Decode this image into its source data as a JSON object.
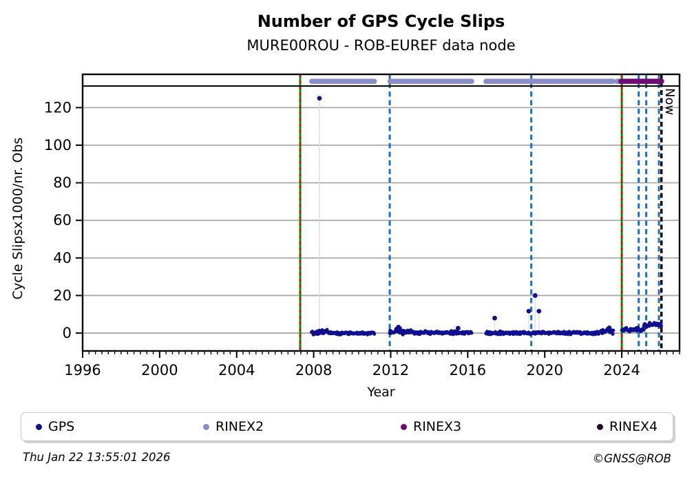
{
  "header": {
    "title": "Number of GPS Cycle Slips",
    "subtitle": "MURE00ROU - ROB-EUREF data node"
  },
  "chart_data": {
    "type": "scatter",
    "title": "Number of GPS Cycle Slips",
    "subtitle": "MURE00ROU - ROB-EUREF data node",
    "xlabel": "Year",
    "ylabel": "Cycle Slipsx1000/nr. Obs",
    "xlim": [
      1996,
      2027
    ],
    "xticks": [
      1996,
      2000,
      2004,
      2008,
      2012,
      2016,
      2020,
      2024
    ],
    "x_minor_step": 0.3333333,
    "ylim": [
      -9.5,
      131.5
    ],
    "yticks": [
      0,
      20,
      40,
      60,
      80,
      100,
      120
    ],
    "grid": "horizontal",
    "grid_color": "#a9a9a9",
    "top_band_value": 134,
    "series": [
      {
        "name": "GPS",
        "color": "#10108f",
        "marker": "dot",
        "bands": [
          [
            2007.9,
            2008.2,
            0.1,
            0.9
          ],
          [
            2008.2,
            2008.75,
            0.7,
            1.3
          ],
          [
            2008.75,
            2011.15,
            0.0,
            0.9
          ],
          [
            2011.95,
            2012.25,
            0.4,
            1.1
          ],
          [
            2012.25,
            2012.6,
            1.3,
            1.7
          ],
          [
            2012.6,
            2013.4,
            0.5,
            1.3
          ],
          [
            2013.4,
            2016.2,
            0.2,
            1.0
          ],
          [
            2016.95,
            2022.9,
            0.15,
            0.95
          ],
          [
            2022.9,
            2023.57,
            1.0,
            1.5
          ],
          [
            2024.0,
            2024.9,
            2.0,
            1.3
          ],
          [
            2024.9,
            2025.15,
            1.8,
            1.1
          ],
          [
            2025.15,
            2025.6,
            4.3,
            1.4
          ],
          [
            2025.6,
            2026.05,
            4.6,
            1.2
          ]
        ],
        "outliers": [
          [
            2008.3,
            125
          ],
          [
            2012.4,
            3.2
          ],
          [
            2015.5,
            2.6
          ],
          [
            2017.4,
            8
          ],
          [
            2019.17,
            11.7
          ],
          [
            2019.5,
            20
          ],
          [
            2019.7,
            11.7
          ],
          [
            2023.35,
            2.8
          ]
        ],
        "stem_threshold": 7,
        "stem_color": "#dcdcee"
      },
      {
        "name": "RINEX2",
        "color": "#8c8cc8",
        "marker": "band",
        "segments": [
          [
            2007.9,
            2010.1
          ],
          [
            2010.2,
            2011.15
          ],
          [
            2011.97,
            2016.2
          ],
          [
            2016.95,
            2023.55
          ],
          [
            2023.75,
            2023.85
          ]
        ]
      },
      {
        "name": "RINEX3",
        "color": "#6f0c6f",
        "marker": "band",
        "segments": [
          [
            2023.95,
            2026.07
          ]
        ]
      },
      {
        "name": "RINEX4",
        "color": "#26082a",
        "marker": "band",
        "segments": []
      }
    ],
    "vlines": [
      {
        "x": 2007.3,
        "style": "green-red"
      },
      {
        "x": 2011.95,
        "style": "blue-dashed"
      },
      {
        "x": 2019.3,
        "style": "blue-dashed"
      },
      {
        "x": 2024.0,
        "style": "green-red"
      },
      {
        "x": 2024.88,
        "style": "blue-dashed"
      },
      {
        "x": 2025.27,
        "style": "blue-dashed"
      },
      {
        "x": 2025.93,
        "style": "blue-dashed"
      },
      {
        "x": 2026.06,
        "style": "now-black-dashed",
        "label": "Now"
      }
    ],
    "line_colors": {
      "green": "#089000",
      "red_dash": "#e00000",
      "blue": "#1b6fc1",
      "now": "#000000"
    }
  },
  "legend": {
    "items": [
      {
        "label": "GPS",
        "color": "#10108f"
      },
      {
        "label": "RINEX2",
        "color": "#8c8cc8"
      },
      {
        "label": "RINEX3",
        "color": "#6f0c6f"
      },
      {
        "label": "RINEX4",
        "color": "#26082a"
      }
    ]
  },
  "footer": {
    "timestamp": "Thu Jan 22 13:55:01 2026",
    "credit": "©GNSS@ROB"
  }
}
